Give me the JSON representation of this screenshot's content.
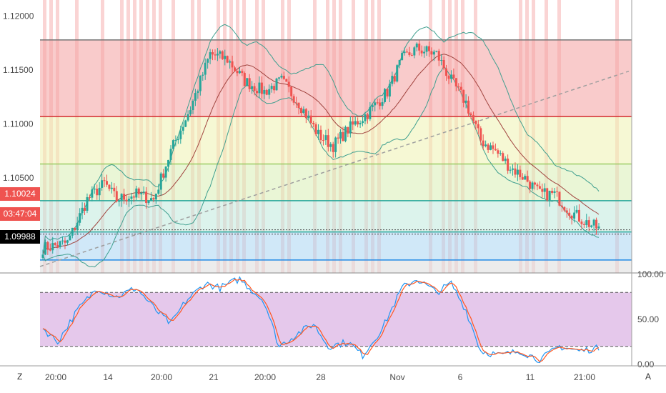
{
  "chart_data": [
    {
      "type": "candlestick",
      "y_ticks": [
        "1.12000",
        "1.11500",
        "1.11000",
        "1.10500"
      ],
      "ylim": [
        1.0962,
        1.1215
      ],
      "x_ticks": [
        "20:00",
        "14",
        "20:00",
        "21",
        "20:00",
        "28",
        "Nov",
        "6",
        "11",
        "21:00"
      ],
      "price_tags": [
        {
          "label": "1.10024",
          "color": "#ef5350"
        },
        {
          "label": "03:47:04",
          "color": "#ef5350"
        },
        {
          "label": "1.09988",
          "color": "#000000"
        }
      ],
      "levels": [
        {
          "value": 1.1178,
          "color": "#757575"
        },
        {
          "value": 1.1107,
          "color": "#d32f2f"
        },
        {
          "value": 1.1063,
          "color": "#9ccc65"
        },
        {
          "value": 1.1029,
          "color": "#26a69a"
        },
        {
          "value": 1.1,
          "color": "#26a69a"
        },
        {
          "value": 1.0974,
          "color": "#1e88e5"
        }
      ],
      "trendline": {
        "from": 1.0968,
        "to": 1.1149,
        "style": "dashed"
      },
      "colors": {
        "up": "#26a69a",
        "down": "#ef5350",
        "bollinger": "#3f9f8f",
        "basis": "#a1443f"
      }
    },
    {
      "type": "line",
      "indicator": "stochastic",
      "y_ticks": [
        "100.00",
        "50.00",
        "0.00"
      ],
      "ylim": [
        0,
        100
      ],
      "bands": [
        80,
        20
      ],
      "colors": {
        "k": "#2196f3",
        "d": "#ff5722",
        "band_fill": "#e1bee7"
      }
    }
  ],
  "toolbar": {
    "left_label": "Z",
    "right_label": "A"
  }
}
